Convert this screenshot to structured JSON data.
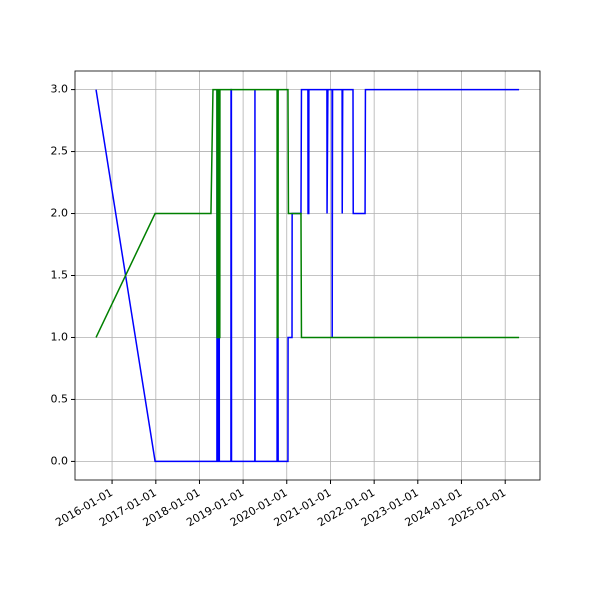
{
  "chart_data": {
    "type": "line",
    "series": [
      {
        "color": "#0000ff",
        "x": [
          "2015-08-20",
          "2016-12-26",
          "2018-05-27",
          "2018-05-28",
          "2018-05-29",
          "2018-06-05",
          "2018-06-06",
          "2018-06-07",
          "2018-06-14",
          "2018-06-15",
          "2018-06-16",
          "2018-09-21",
          "2018-09-22",
          "2018-09-25",
          "2018-09-26",
          "2019-04-09",
          "2019-04-10",
          "2019-04-11",
          "2019-10-12",
          "2019-10-13",
          "2019-10-20",
          "2019-10-21",
          "2020-01-11",
          "2020-01-12",
          "2020-02-14",
          "2020-02-15",
          "2020-04-29",
          "2020-05-03",
          "2020-06-26",
          "2020-06-27",
          "2020-07-03",
          "2020-07-04",
          "2020-12-02",
          "2020-12-03",
          "2020-12-10",
          "2021-01-14",
          "2021-01-15",
          "2021-01-18",
          "2021-04-08",
          "2021-04-09",
          "2021-04-13",
          "2021-07-08",
          "2021-07-10",
          "2021-10-17",
          "2021-10-20",
          "2025-04-27"
        ],
        "values": [
          3,
          0,
          0,
          3,
          0,
          0,
          3,
          0,
          0,
          3,
          0,
          0,
          3,
          3,
          0,
          0,
          3,
          0,
          0,
          1,
          1,
          0,
          0,
          1,
          1,
          2,
          2,
          3,
          3,
          2,
          2,
          3,
          3,
          2,
          3,
          3,
          1,
          3,
          3,
          2,
          3,
          3,
          2,
          2,
          3,
          3
        ]
      },
      {
        "color": "#008000",
        "x": [
          "2015-08-20",
          "2016-12-26",
          "2018-04-07",
          "2018-04-24",
          "2018-05-27",
          "2018-05-28",
          "2018-06-05",
          "2018-06-06",
          "2018-06-14",
          "2018-06-15",
          "2018-06-20",
          "2018-06-21",
          "2019-10-12",
          "2019-10-13",
          "2019-10-20",
          "2019-10-21",
          "2020-01-11",
          "2020-01-15",
          "2020-04-29",
          "2020-05-03",
          "2025-04-27"
        ],
        "values": [
          1,
          2,
          2,
          3,
          3,
          1,
          1,
          3,
          3,
          1,
          1,
          3,
          3,
          1,
          1,
          3,
          3,
          2,
          2,
          1,
          1
        ]
      }
    ],
    "xlim": [
      "2015-02-25",
      "2025-10-19"
    ],
    "xticks": [
      "2016-01-01",
      "2017-01-01",
      "2018-01-01",
      "2019-01-01",
      "2020-01-01",
      "2021-01-01",
      "2022-01-01",
      "2023-01-01",
      "2024-01-01",
      "2025-01-01"
    ],
    "ylim": [
      -0.15,
      3.15
    ],
    "yticks": [
      {
        "value": 0,
        "label": "0.0"
      },
      0.5,
      {
        "value": 1,
        "label": "1.0"
      },
      1.5,
      {
        "value": 2,
        "label": "2.0"
      },
      2.5,
      {
        "value": 3,
        "label": "3.0"
      }
    ],
    "grid": true
  }
}
